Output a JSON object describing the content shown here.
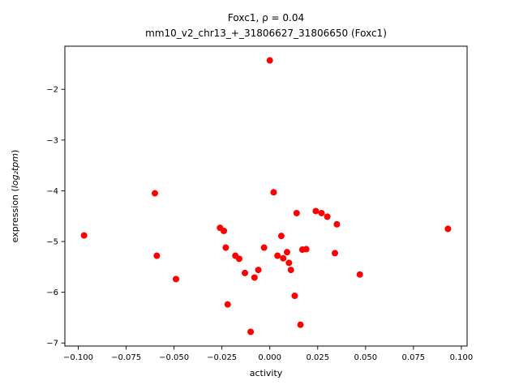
{
  "title": {
    "line1": "Foxc1, ρ = 0.04",
    "line2": "mm10_v2_chr13_+_31806627_31806650 (Foxc1)"
  },
  "axes": {
    "xlabel": "activity",
    "ylabel": {
      "prefix": "expression (",
      "math": "log₂tpm",
      "suffix": ")"
    }
  },
  "chart_data": {
    "type": "scatter",
    "title": "Foxc1, ρ = 0.04\nmm10_v2_chr13_+_31806627_31806650 (Foxc1)",
    "xlabel": "activity",
    "ylabel": "expression (log₂tpm)",
    "marker_color": "#ff0000",
    "marker_size_px": 4,
    "grid": false,
    "legend": "none",
    "xlim": [
      -0.107,
      0.103
    ],
    "ylim": [
      -7.06,
      -1.15
    ],
    "x_ticks": {
      "values": [
        -0.1,
        -0.075,
        -0.05,
        -0.025,
        0.0,
        0.025,
        0.05,
        0.075,
        0.1
      ],
      "labels": [
        "−0.100",
        "−0.075",
        "−0.050",
        "−0.025",
        "0.000",
        "0.025",
        "0.050",
        "0.075",
        "0.100"
      ]
    },
    "y_ticks": {
      "values": [
        -7,
        -6,
        -5,
        -4,
        -3,
        -2
      ],
      "labels": [
        "−7",
        "−6",
        "−5",
        "−4",
        "−3",
        "−2"
      ]
    },
    "points": [
      [
        -0.097,
        -4.88
      ],
      [
        -0.06,
        -4.05
      ],
      [
        -0.059,
        -5.28
      ],
      [
        -0.049,
        -5.74
      ],
      [
        -0.026,
        -4.73
      ],
      [
        -0.024,
        -4.79
      ],
      [
        -0.023,
        -5.12
      ],
      [
        -0.022,
        -6.24
      ],
      [
        -0.018,
        -5.28
      ],
      [
        -0.016,
        -5.34
      ],
      [
        -0.013,
        -5.62
      ],
      [
        -0.01,
        -6.78
      ],
      [
        -0.008,
        -5.71
      ],
      [
        -0.006,
        -5.56
      ],
      [
        -0.003,
        -5.12
      ],
      [
        0.0,
        -1.43
      ],
      [
        0.002,
        -4.03
      ],
      [
        0.004,
        -5.28
      ],
      [
        0.006,
        -4.89
      ],
      [
        0.007,
        -5.33
      ],
      [
        0.009,
        -5.21
      ],
      [
        0.01,
        -5.42
      ],
      [
        0.011,
        -5.56
      ],
      [
        0.013,
        -6.07
      ],
      [
        0.014,
        -4.44
      ],
      [
        0.016,
        -6.64
      ],
      [
        0.017,
        -5.16
      ],
      [
        0.019,
        -5.15
      ],
      [
        0.024,
        -4.4
      ],
      [
        0.027,
        -4.44
      ],
      [
        0.03,
        -4.51
      ],
      [
        0.034,
        -5.23
      ],
      [
        0.035,
        -4.66
      ],
      [
        0.047,
        -5.65
      ],
      [
        0.093,
        -4.75
      ]
    ]
  }
}
